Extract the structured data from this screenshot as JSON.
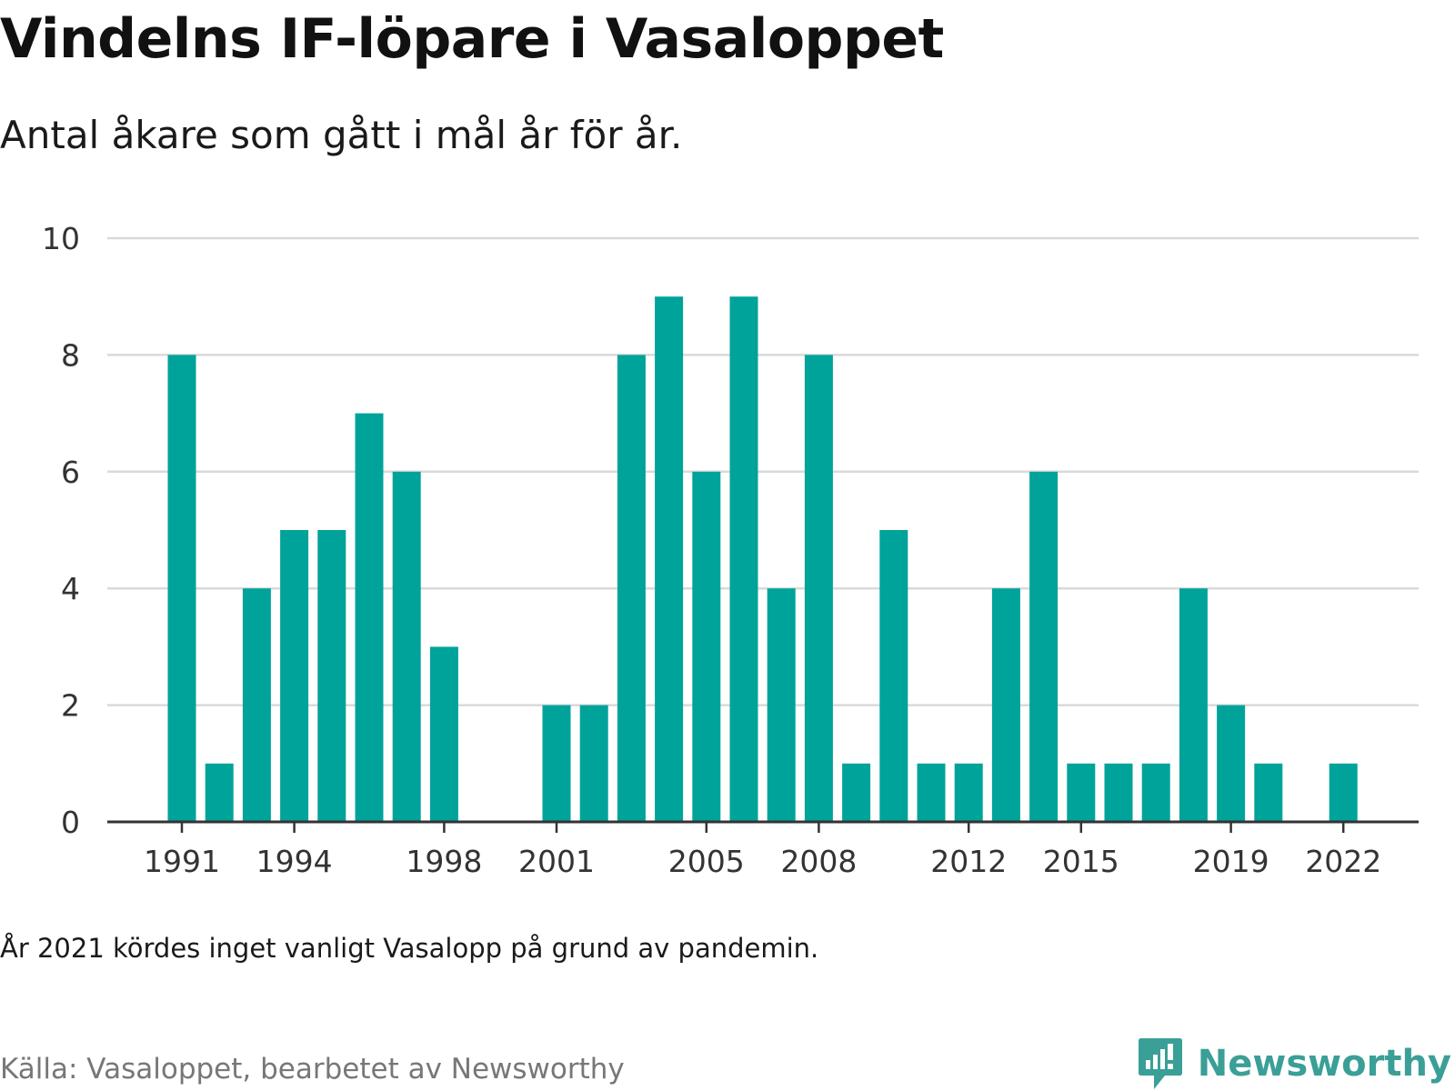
{
  "header": {
    "title": "Vindelns IF-löpare i Vasaloppet",
    "subtitle": "Antal åkare som gått i mål år för år."
  },
  "footer": {
    "note": "År 2021 kördes inget vanligt Vasalopp på grund av pandemin.",
    "source": "Källa: Vasaloppet, bearbetet av Newsworthy",
    "brand": "Newsworthy"
  },
  "colors": {
    "bar": "#00a39a",
    "brand": "#3a9f97",
    "grid": "#d9d9d9",
    "axis": "#333333"
  },
  "icons": {
    "brand_logo": "newsworthy-logo-icon"
  },
  "chart_data": {
    "type": "bar",
    "title": "Vindelns IF-löpare i Vasaloppet",
    "subtitle": "Antal åkare som gått i mål år för år.",
    "x": [
      1991,
      1992,
      1993,
      1994,
      1995,
      1996,
      1997,
      1998,
      1999,
      2000,
      2001,
      2002,
      2003,
      2004,
      2005,
      2006,
      2007,
      2008,
      2009,
      2010,
      2011,
      2012,
      2013,
      2014,
      2015,
      2016,
      2017,
      2018,
      2019,
      2020,
      2021,
      2022
    ],
    "values": [
      8,
      1,
      4,
      5,
      5,
      7,
      6,
      3,
      0,
      0,
      2,
      2,
      8,
      9,
      6,
      9,
      4,
      8,
      1,
      5,
      1,
      1,
      4,
      6,
      1,
      1,
      1,
      4,
      2,
      1,
      0,
      1
    ],
    "x_tick_labels": [
      "1991",
      "1994",
      "1998",
      "2001",
      "2005",
      "2008",
      "2012",
      "2015",
      "2019",
      "2022"
    ],
    "y_ticks": [
      0,
      2,
      4,
      6,
      8,
      10
    ],
    "ylim": [
      0,
      10
    ],
    "grid": true,
    "xlabel": "",
    "ylabel": ""
  }
}
